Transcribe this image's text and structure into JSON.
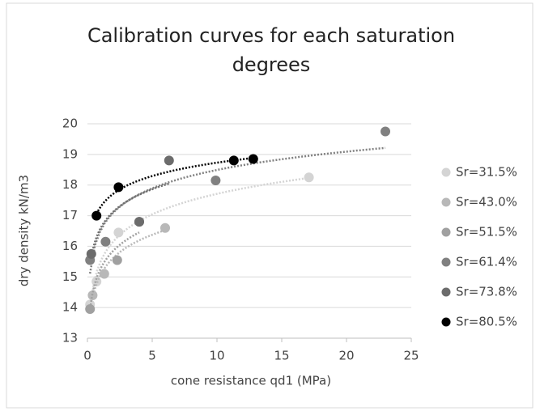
{
  "chart_data": {
    "type": "scatter",
    "title": "Calibration curves for each saturation degrees",
    "x_label": "cone resistance qd1 (MPa)",
    "y_label": "dry density kN/m3",
    "xlim": [
      0,
      25
    ],
    "xticks": [
      0,
      5,
      10,
      15,
      20,
      25
    ],
    "ylim": [
      13,
      20
    ],
    "yticks": [
      13,
      14,
      15,
      16,
      17,
      18,
      19,
      20
    ],
    "trendline": "log",
    "series": [
      {
        "name": "Sr=31.5%",
        "color": "#d4d4d4",
        "x": [
          0.2,
          0.7,
          2.4,
          17.1
        ],
        "values": [
          14.1,
          14.85,
          16.45,
          18.25
        ]
      },
      {
        "name": "Sr=43.0%",
        "color": "#b8b8b8",
        "x": [
          0.4,
          1.3,
          6.0
        ],
        "values": [
          14.4,
          15.1,
          16.6
        ]
      },
      {
        "name": "Sr=51.5%",
        "color": "#a0a0a0",
        "x": [
          0.2,
          2.3,
          4.0
        ],
        "values": [
          13.95,
          15.55,
          16.8
        ]
      },
      {
        "name": "Sr=61.4%",
        "color": "#808080",
        "x": [
          0.2,
          1.4,
          9.9,
          23.0
        ],
        "values": [
          15.55,
          16.15,
          18.15,
          19.75
        ]
      },
      {
        "name": "Sr=73.8%",
        "color": "#6c6c6c",
        "x": [
          0.3,
          4.0,
          6.3
        ],
        "values": [
          15.75,
          16.8,
          18.8
        ]
      },
      {
        "name": "Sr=80.5%",
        "color": "#000000",
        "x": [
          0.7,
          2.4,
          11.3,
          12.8
        ],
        "values": [
          17.0,
          17.93,
          18.8,
          18.85
        ]
      }
    ]
  }
}
